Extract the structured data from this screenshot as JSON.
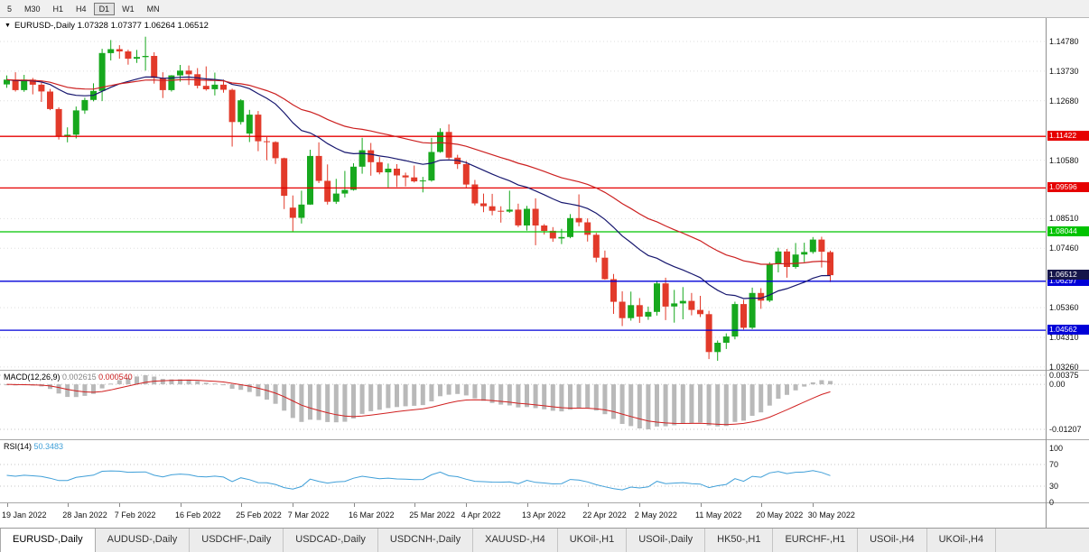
{
  "toolbar": {
    "timeframes": [
      {
        "label": "5",
        "active": false
      },
      {
        "label": "M30",
        "active": false
      },
      {
        "label": "H1",
        "active": false
      },
      {
        "label": "H4",
        "active": false
      },
      {
        "label": "D1",
        "active": true
      },
      {
        "label": "W1",
        "active": false
      },
      {
        "label": "MN",
        "active": false
      }
    ]
  },
  "chart": {
    "title": "EURUSD-,Daily 1.07328 1.07377 1.06264 1.06512",
    "symbol": "EURUSD-,Daily",
    "open": "1.07328",
    "high": "1.07377",
    "low": "1.06264",
    "close": "1.06512",
    "y_axis_labels": [
      "1.14780",
      "1.13730",
      "1.12680",
      "1.10580",
      "1.08510",
      "1.07460",
      "1.05360",
      "1.04310",
      "1.03260"
    ],
    "hlines": [
      {
        "price": 1.11422,
        "label": "1.11422",
        "color": "#e60000"
      },
      {
        "price": 1.09596,
        "label": "1.09596",
        "color": "#e60000"
      },
      {
        "price": 1.08044,
        "label": "1.08044",
        "color": "#00c300"
      },
      {
        "price": 1.06297,
        "label": "1.06297",
        "color": "#0000d8"
      },
      {
        "price": 1.04562,
        "label": "1.04562",
        "color": "#0000d8"
      }
    ],
    "current_price": {
      "value": 1.06512,
      "label": "1.06512",
      "color": "#16164a"
    }
  },
  "macd": {
    "name": "MACD(12,26,9)",
    "value1": "0.002615",
    "value2": "0.000540",
    "axis_labels": [
      "0.00375",
      "0.00",
      "-0.01207"
    ]
  },
  "rsi": {
    "name": "RSI(14)",
    "value": "50.3483",
    "axis_labels": [
      "100",
      "70",
      "30",
      "0"
    ],
    "levels": [
      70,
      30
    ]
  },
  "tabs": [
    {
      "label": "EURUSD-,Daily",
      "active": true
    },
    {
      "label": "AUDUSD-,Daily",
      "active": false
    },
    {
      "label": "USDCHF-,Daily",
      "active": false
    },
    {
      "label": "USDCAD-,Daily",
      "active": false
    },
    {
      "label": "USDCNH-,Daily",
      "active": false
    },
    {
      "label": "XAUUSD-,H4",
      "active": false
    },
    {
      "label": "UKOil-,H1",
      "active": false
    },
    {
      "label": "USOil-,Daily",
      "active": false
    },
    {
      "label": "HK50-,H1",
      "active": false
    },
    {
      "label": "EURCHF-,H1",
      "active": false
    },
    {
      "label": "USOil-,H4",
      "active": false
    },
    {
      "label": "UKOil-,H4",
      "active": false
    }
  ],
  "chart_data": {
    "type": "candlestick",
    "symbol": "EURUSD",
    "timeframe": "Daily",
    "y_range": [
      1.0285,
      1.1561
    ],
    "colors": {
      "up": "#17a81e",
      "down": "#e23a2a"
    },
    "overlays": [
      {
        "name": "ma-fast",
        "type": "ema",
        "period": 20,
        "color": "#16166e"
      },
      {
        "name": "ma-slow",
        "type": "ema",
        "period": 40,
        "color": "#cc2020"
      }
    ],
    "x_ticks": [
      {
        "i": 0,
        "label": "19 Jan 2022"
      },
      {
        "i": 7,
        "label": "28 Jan 2022"
      },
      {
        "i": 13,
        "label": "7 Feb 2022"
      },
      {
        "i": 20,
        "label": "16 Feb 2022"
      },
      {
        "i": 27,
        "label": "25 Feb 2022"
      },
      {
        "i": 33,
        "label": "7 Mar 2022"
      },
      {
        "i": 40,
        "label": "16 Mar 2022"
      },
      {
        "i": 47,
        "label": "25 Mar 2022"
      },
      {
        "i": 53,
        "label": "4 Apr 2022"
      },
      {
        "i": 60,
        "label": "13 Apr 2022"
      },
      {
        "i": 67,
        "label": "22 Apr 2022"
      },
      {
        "i": 73,
        "label": "2 May 2022"
      },
      {
        "i": 80,
        "label": "11 May 2022"
      },
      {
        "i": 87,
        "label": "20 May 2022"
      },
      {
        "i": 93,
        "label": "30 May 2022"
      }
    ],
    "ohlc": [
      [
        1.1326,
        1.1358,
        1.1314,
        1.1343
      ],
      [
        1.1343,
        1.1369,
        1.1301,
        1.1306
      ],
      [
        1.1306,
        1.136,
        1.13,
        1.1343
      ],
      [
        1.1343,
        1.1349,
        1.1291,
        1.1325
      ],
      [
        1.1325,
        1.1334,
        1.1264,
        1.1301
      ],
      [
        1.1301,
        1.131,
        1.1235,
        1.1239
      ],
      [
        1.1239,
        1.1245,
        1.1131,
        1.1144
      ],
      [
        1.1144,
        1.1174,
        1.1121,
        1.1148
      ],
      [
        1.1148,
        1.1248,
        1.1135,
        1.1234
      ],
      [
        1.1234,
        1.1279,
        1.1222,
        1.1271
      ],
      [
        1.1271,
        1.133,
        1.1266,
        1.1303
      ],
      [
        1.1303,
        1.1452,
        1.1267,
        1.1437
      ],
      [
        1.1437,
        1.1483,
        1.1411,
        1.1451
      ],
      [
        1.1451,
        1.1465,
        1.1417,
        1.1443
      ],
      [
        1.1443,
        1.1449,
        1.1396,
        1.1417
      ],
      [
        1.1417,
        1.1448,
        1.1402,
        1.1423
      ],
      [
        1.1423,
        1.1495,
        1.1375,
        1.1427
      ],
      [
        1.1427,
        1.144,
        1.1329,
        1.1349
      ],
      [
        1.1349,
        1.1369,
        1.1278,
        1.1306
      ],
      [
        1.1306,
        1.1359,
        1.1301,
        1.1358
      ],
      [
        1.1358,
        1.1395,
        1.1336,
        1.1375
      ],
      [
        1.1375,
        1.1393,
        1.1324,
        1.1362
      ],
      [
        1.1362,
        1.1384,
        1.1312,
        1.1321
      ],
      [
        1.1321,
        1.139,
        1.1304,
        1.1309
      ],
      [
        1.1309,
        1.1368,
        1.1287,
        1.1325
      ],
      [
        1.1325,
        1.1343,
        1.1297,
        1.1307
      ],
      [
        1.1307,
        1.1311,
        1.1106,
        1.1193
      ],
      [
        1.1193,
        1.1274,
        1.1184,
        1.127
      ],
      [
        1.1152,
        1.1236,
        1.1122,
        1.1219
      ],
      [
        1.1219,
        1.1232,
        1.109,
        1.1125
      ],
      [
        1.1125,
        1.114,
        1.1058,
        1.1122
      ],
      [
        1.1122,
        1.1125,
        1.1045,
        1.1065
      ],
      [
        1.1065,
        1.1067,
        1.0885,
        1.0932
      ],
      [
        1.089,
        1.0933,
        1.0806,
        1.0854
      ],
      [
        1.0854,
        1.095,
        1.0834,
        1.0901
      ],
      [
        1.0901,
        1.1095,
        1.09,
        1.1073
      ],
      [
        1.1073,
        1.1121,
        1.0977,
        1.0985
      ],
      [
        1.0985,
        1.1043,
        1.0901,
        1.0911
      ],
      [
        1.0911,
        1.0992,
        1.0903,
        1.094
      ],
      [
        1.094,
        1.102,
        1.0926,
        1.0953
      ],
      [
        1.0953,
        1.1047,
        1.095,
        1.1035
      ],
      [
        1.1035,
        1.1137,
        1.101,
        1.1093
      ],
      [
        1.1093,
        1.1119,
        1.1003,
        1.1051
      ],
      [
        1.1051,
        1.1069,
        1.1008,
        1.1015
      ],
      [
        1.1015,
        1.1046,
        1.0962,
        1.1028
      ],
      [
        1.1028,
        1.1044,
        1.0963,
        1.1004
      ],
      [
        1.1004,
        1.1014,
        1.0965,
        1.0997
      ],
      [
        1.0997,
        1.1039,
        1.0979,
        1.0983
      ],
      [
        1.0983,
        1.0999,
        1.0944,
        1.0986
      ],
      [
        1.0986,
        1.1137,
        1.0982,
        1.1087
      ],
      [
        1.1087,
        1.1171,
        1.1084,
        1.1158
      ],
      [
        1.1158,
        1.1185,
        1.1061,
        1.1067
      ],
      [
        1.1067,
        1.1077,
        1.1027,
        1.1044
      ],
      [
        1.1044,
        1.1055,
        1.096,
        1.0972
      ],
      [
        1.0972,
        1.0988,
        1.0898,
        1.0905
      ],
      [
        1.0905,
        1.094,
        1.0874,
        1.0895
      ],
      [
        1.0895,
        1.0939,
        1.0863,
        1.0879
      ],
      [
        1.0879,
        1.0895,
        1.0837,
        1.0876
      ],
      [
        1.0876,
        1.095,
        1.0872,
        1.0883
      ],
      [
        1.0883,
        1.0904,
        1.0821,
        1.0827
      ],
      [
        1.0827,
        1.0896,
        1.0809,
        1.0886
      ],
      [
        1.0886,
        1.0923,
        1.0757,
        1.0827
      ],
      [
        1.0827,
        1.0832,
        1.0795,
        1.0808
      ],
      [
        1.0808,
        1.0821,
        1.0769,
        1.0781
      ],
      [
        1.0781,
        1.0815,
        1.0761,
        1.0786
      ],
      [
        1.0786,
        1.0867,
        1.0782,
        1.0853
      ],
      [
        1.0853,
        1.0937,
        1.0824,
        1.0838
      ],
      [
        1.0838,
        1.0852,
        1.077,
        1.0794
      ],
      [
        1.0794,
        1.0801,
        1.0697,
        1.0713
      ],
      [
        1.0713,
        1.0738,
        1.0635,
        1.0637
      ],
      [
        1.0637,
        1.0655,
        1.0514,
        1.0557
      ],
      [
        1.0557,
        1.0594,
        1.0471,
        1.0499
      ],
      [
        1.0499,
        1.0593,
        1.049,
        1.0545
      ],
      [
        1.0545,
        1.057,
        1.0482,
        1.0504
      ],
      [
        1.0504,
        1.054,
        1.0493,
        1.0521
      ],
      [
        1.0521,
        1.0632,
        1.0508,
        1.0622
      ],
      [
        1.0622,
        1.0642,
        1.0492,
        1.054
      ],
      [
        1.054,
        1.0599,
        1.0483,
        1.0551
      ],
      [
        1.0551,
        1.0609,
        1.0495,
        1.056
      ],
      [
        1.056,
        1.0588,
        1.0509,
        1.0528
      ],
      [
        1.0528,
        1.0578,
        1.0503,
        1.0513
      ],
      [
        1.0513,
        1.0525,
        1.0354,
        1.0379
      ],
      [
        1.0379,
        1.042,
        1.0348,
        1.0412
      ],
      [
        1.0412,
        1.0445,
        1.039,
        1.0434
      ],
      [
        1.0434,
        1.0557,
        1.0424,
        1.0549
      ],
      [
        1.0549,
        1.0564,
        1.0459,
        1.0465
      ],
      [
        1.0465,
        1.0607,
        1.046,
        1.0588
      ],
      [
        1.0588,
        1.0605,
        1.0532,
        1.0561
      ],
      [
        1.0561,
        1.0697,
        1.0556,
        1.0691
      ],
      [
        1.0691,
        1.0748,
        1.0661,
        1.0735
      ],
      [
        1.0735,
        1.0744,
        1.0642,
        1.068
      ],
      [
        1.068,
        1.0765,
        1.0674,
        1.0724
      ],
      [
        1.0724,
        1.0766,
        1.0697,
        1.0733
      ],
      [
        1.0733,
        1.0786,
        1.0727,
        1.0777
      ],
      [
        1.0777,
        1.0787,
        1.0678,
        1.0734
      ],
      [
        1.07328,
        1.07377,
        1.06264,
        1.06512
      ]
    ]
  }
}
